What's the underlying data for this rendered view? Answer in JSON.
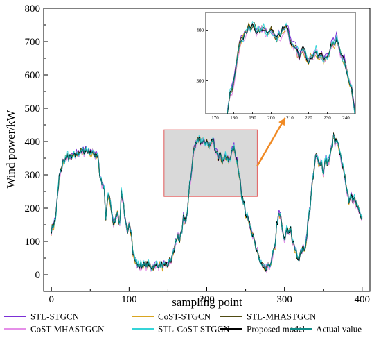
{
  "chart_data": {
    "type": "line",
    "title": "",
    "xlabel": "sampling point",
    "ylabel": "Wind power/kW",
    "xlim": [
      -10,
      410
    ],
    "ylim": [
      -50,
      800
    ],
    "xticks": [
      0,
      100,
      200,
      300,
      400
    ],
    "yticks": [
      0,
      100,
      200,
      300,
      400,
      500,
      600,
      700,
      800
    ],
    "grid": false,
    "legend_position": "bottom",
    "actual_profile": {
      "x": [
        0,
        5,
        10,
        15,
        20,
        25,
        30,
        35,
        40,
        45,
        50,
        55,
        60,
        62,
        65,
        68,
        70,
        73,
        75,
        78,
        80,
        83,
        85,
        88,
        90,
        93,
        95,
        98,
        100,
        103,
        105,
        108,
        110,
        112,
        115,
        120,
        125,
        130,
        135,
        140,
        145,
        150,
        155,
        160,
        163,
        165,
        168,
        170,
        173,
        175,
        178,
        180,
        183,
        185,
        188,
        190,
        193,
        195,
        198,
        200,
        203,
        205,
        208,
        210,
        213,
        215,
        218,
        220,
        223,
        225,
        228,
        230,
        233,
        235,
        238,
        240,
        243,
        245,
        248,
        250,
        253,
        255,
        258,
        260,
        263,
        265,
        268,
        270,
        273,
        275,
        278,
        280,
        283,
        285,
        288,
        290,
        293,
        295,
        298,
        300,
        303,
        305,
        308,
        310,
        313,
        315,
        318,
        320,
        323,
        325,
        328,
        330,
        333,
        335,
        338,
        340,
        343,
        345,
        348,
        350,
        353,
        355,
        358,
        360,
        363,
        365,
        368,
        370,
        373,
        375,
        378,
        380,
        383,
        385,
        388,
        390,
        393,
        395,
        398,
        400
      ],
      "y": [
        135,
        160,
        290,
        340,
        355,
        350,
        360,
        365,
        370,
        375,
        368,
        362,
        358,
        300,
        270,
        255,
        165,
        240,
        230,
        180,
        150,
        170,
        190,
        150,
        250,
        210,
        160,
        120,
        150,
        130,
        70,
        40,
        30,
        25,
        30,
        28,
        30,
        22,
        30,
        28,
        26,
        30,
        50,
        95,
        120,
        105,
        125,
        170,
        160,
        185,
        275,
        300,
        370,
        385,
        405,
        412,
        395,
        405,
        398,
        395,
        380,
        395,
        402,
        385,
        370,
        355,
        360,
        340,
        355,
        348,
        345,
        352,
        370,
        380,
        350,
        330,
        280,
        230,
        215,
        190,
        175,
        150,
        120,
        110,
        80,
        75,
        40,
        30,
        22,
        15,
        20,
        28,
        35,
        60,
        90,
        150,
        180,
        175,
        120,
        100,
        140,
        130,
        135,
        100,
        85,
        65,
        50,
        60,
        80,
        70,
        100,
        150,
        200,
        260,
        310,
        355,
        350,
        330,
        340,
        300,
        350,
        335,
        345,
        375,
        420,
        395,
        400,
        380,
        350,
        320,
        300,
        250,
        220,
        240,
        225,
        230,
        215,
        200,
        175,
        165
      ]
    },
    "series": [
      {
        "name": "STL-STGCN",
        "color": "#7b2fd6",
        "noise": 9,
        "bias": 3
      },
      {
        "name": "CoST-STGCN",
        "color": "#d9a520",
        "noise": 9,
        "bias": -2
      },
      {
        "name": "STL-MHASTGCN",
        "color": "#4f4a12",
        "noise": 7,
        "bias": 1
      },
      {
        "name": "CoST-MHASTGCN",
        "color": "#e58fe8",
        "noise": 10,
        "bias": -3
      },
      {
        "name": "STL-CoST-STGCN",
        "color": "#35d4d8",
        "noise": 10,
        "bias": 2
      },
      {
        "name": "Proposed model",
        "color": "#000000",
        "noise": 6,
        "bias": 0
      },
      {
        "name": "Actual value",
        "color": "#0e8a86",
        "noise": 0,
        "bias": 0
      }
    ],
    "zoom_region": {
      "x": [
        145,
        265
      ],
      "y": [
        235,
        435
      ]
    },
    "inset": {
      "xlim": [
        165,
        245
      ],
      "ylim": [
        235,
        435
      ],
      "xticks": [
        170,
        180,
        190,
        200,
        210,
        220,
        230,
        240
      ],
      "yticks": [
        300,
        400
      ]
    }
  }
}
